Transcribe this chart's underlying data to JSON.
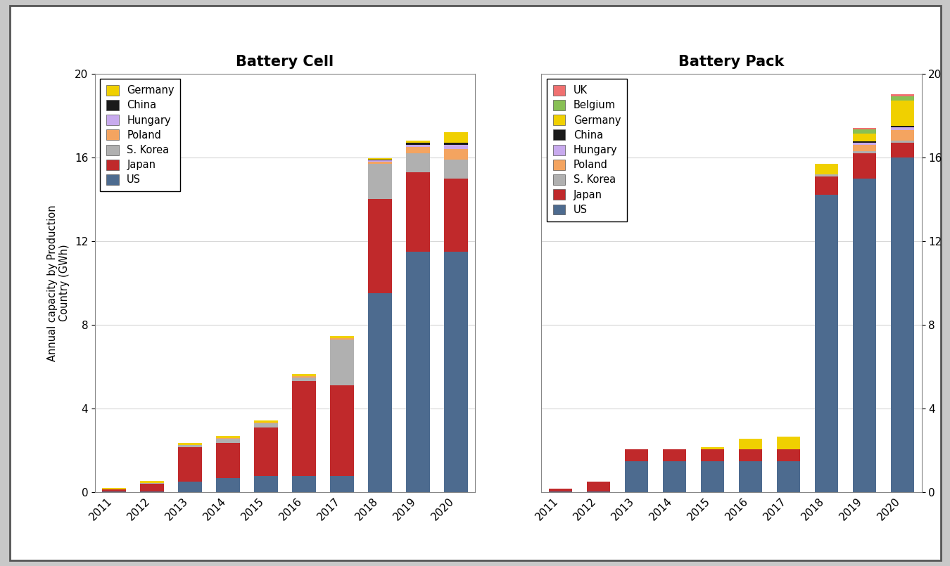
{
  "years": [
    2011,
    2012,
    2013,
    2014,
    2015,
    2016,
    2017,
    2018,
    2019,
    2020
  ],
  "cell": {
    "US": [
      0.05,
      0.05,
      0.5,
      0.7,
      0.8,
      0.8,
      0.8,
      9.5,
      11.5,
      11.5
    ],
    "Japan": [
      0.1,
      0.35,
      1.65,
      1.65,
      2.3,
      4.5,
      4.3,
      4.5,
      3.8,
      3.5
    ],
    "S_Korea": [
      0.0,
      0.05,
      0.1,
      0.2,
      0.2,
      0.2,
      2.2,
      1.7,
      0.9,
      0.9
    ],
    "Poland": [
      0.0,
      0.0,
      0.0,
      0.05,
      0.05,
      0.05,
      0.05,
      0.1,
      0.3,
      0.5
    ],
    "Hungary": [
      0.0,
      0.0,
      0.0,
      0.0,
      0.0,
      0.0,
      0.0,
      0.05,
      0.1,
      0.2
    ],
    "China": [
      0.0,
      0.0,
      0.0,
      0.0,
      0.0,
      0.0,
      0.0,
      0.05,
      0.1,
      0.1
    ],
    "Germany": [
      0.05,
      0.1,
      0.1,
      0.1,
      0.1,
      0.1,
      0.1,
      0.05,
      0.1,
      0.5
    ]
  },
  "pack": {
    "US": [
      0.05,
      0.05,
      1.5,
      1.5,
      1.5,
      1.5,
      1.5,
      14.2,
      15.0,
      16.0
    ],
    "Japan": [
      0.12,
      0.45,
      0.55,
      0.55,
      0.55,
      0.55,
      0.55,
      0.9,
      1.2,
      0.7
    ],
    "S_Korea": [
      0.0,
      0.0,
      0.0,
      0.0,
      0.0,
      0.0,
      0.0,
      0.1,
      0.1,
      0.1
    ],
    "Poland": [
      0.0,
      0.0,
      0.0,
      0.0,
      0.0,
      0.0,
      0.0,
      0.0,
      0.3,
      0.5
    ],
    "Hungary": [
      0.0,
      0.0,
      0.0,
      0.0,
      0.0,
      0.0,
      0.0,
      0.0,
      0.1,
      0.15
    ],
    "China": [
      0.0,
      0.0,
      0.0,
      0.0,
      0.0,
      0.0,
      0.0,
      0.0,
      0.05,
      0.05
    ],
    "Germany": [
      0.0,
      0.0,
      0.0,
      0.0,
      0.1,
      0.5,
      0.6,
      0.5,
      0.4,
      1.2
    ],
    "Belgium": [
      0.0,
      0.0,
      0.0,
      0.0,
      0.0,
      0.0,
      0.0,
      0.0,
      0.2,
      0.2
    ],
    "UK": [
      0.0,
      0.0,
      0.0,
      0.0,
      0.0,
      0.0,
      0.0,
      0.0,
      0.05,
      0.1
    ]
  },
  "colors": {
    "US": "#4d6b8f",
    "Japan": "#c0292b",
    "S_Korea": "#b0b0b0",
    "Poland": "#f4a460",
    "Hungary": "#c8aaee",
    "China": "#1a1a1a",
    "Germany": "#f0d000",
    "Belgium": "#88c055",
    "UK": "#f07070"
  },
  "cell_layers": [
    "US",
    "Japan",
    "S_Korea",
    "Poland",
    "Hungary",
    "China",
    "Germany"
  ],
  "pack_layers": [
    "US",
    "Japan",
    "S_Korea",
    "Poland",
    "Hungary",
    "China",
    "Germany",
    "Belgium",
    "UK"
  ],
  "cell_legend_order": [
    "Germany",
    "China",
    "Hungary",
    "Poland",
    "S_Korea",
    "Japan",
    "US"
  ],
  "pack_legend_order": [
    "UK",
    "Belgium",
    "Germany",
    "China",
    "Hungary",
    "Poland",
    "S_Korea",
    "Japan",
    "US"
  ],
  "ylim": [
    0,
    20
  ],
  "yticks": [
    0,
    4,
    8,
    12,
    16,
    20
  ],
  "ylabel": "Annual capacity by Production\nCountry (GWh)",
  "cell_title": "Battery Cell",
  "pack_title": "Battery Pack"
}
